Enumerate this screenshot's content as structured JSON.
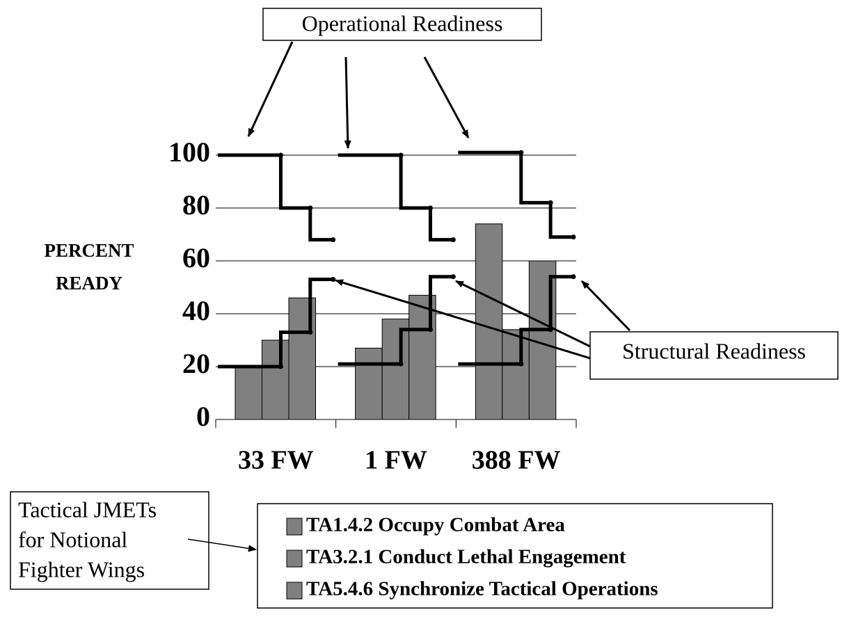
{
  "chart_data": {
    "type": "bar",
    "y_label": [
      "PERCENT",
      "READY"
    ],
    "categories": [
      "33 FW",
      "1 FW",
      "388 FW"
    ],
    "series": [
      {
        "name": "TA1.4.2 Occupy Combat Area",
        "color": "#808080",
        "values": [
          20,
          27,
          74
        ]
      },
      {
        "name": "TA3.2.1 Conduct Lethal Engagement",
        "color": "#808080",
        "values": [
          30,
          38,
          34
        ]
      },
      {
        "name": "TA5.4.6 Synchronize Tactical Operations",
        "color": "#808080",
        "values": [
          46,
          47,
          60
        ]
      }
    ],
    "step_lines": [
      {
        "name": "Operational Readiness",
        "color": "#000000",
        "values": [
          [
            100,
            80,
            68
          ],
          [
            100,
            80,
            68
          ],
          [
            101,
            82,
            69
          ]
        ]
      },
      {
        "name": "Structural Readiness",
        "color": "#000000",
        "values": [
          [
            20,
            33,
            53
          ],
          [
            21,
            34,
            54
          ],
          [
            21,
            34,
            54
          ]
        ]
      }
    ],
    "annotation": [
      "Tactical JMETs",
      "for Notional",
      "Fighter Wings"
    ],
    "ylim": [
      0,
      100
    ],
    "yticks": [
      0,
      20,
      40,
      60,
      80,
      100
    ],
    "grid": true
  }
}
